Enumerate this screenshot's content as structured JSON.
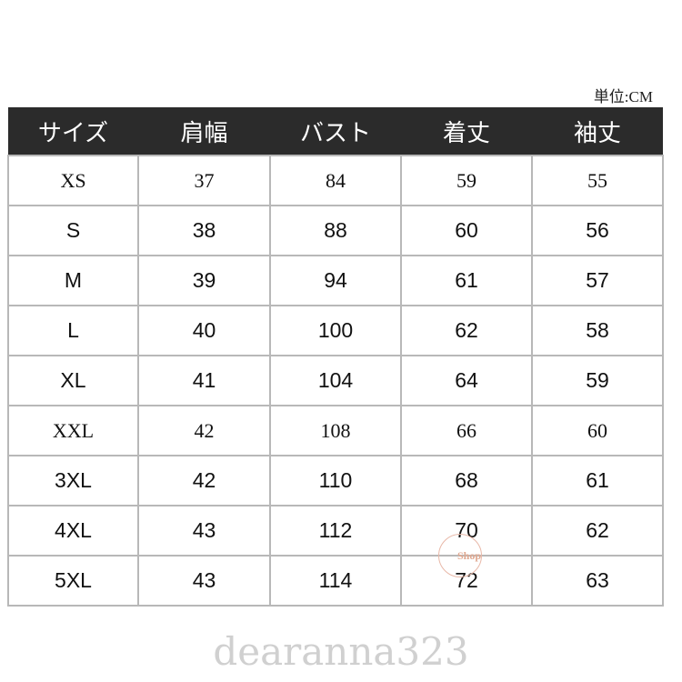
{
  "unit_label": "単位:CM",
  "headers": [
    "サイズ",
    "肩幅",
    "バスト",
    "着丈",
    "袖丈"
  ],
  "rows": [
    [
      "XS",
      "37",
      "84",
      "59",
      "55"
    ],
    [
      "S",
      "38",
      "88",
      "60",
      "56"
    ],
    [
      "M",
      "39",
      "94",
      "61",
      "57"
    ],
    [
      "L",
      "40",
      "100",
      "62",
      "58"
    ],
    [
      "XL",
      "41",
      "104",
      "64",
      "59"
    ],
    [
      "XXL",
      "42",
      "108",
      "66",
      "60"
    ],
    [
      "3XL",
      "42",
      "110",
      "68",
      "61"
    ],
    [
      "4XL",
      "43",
      "112",
      "70",
      "62"
    ],
    [
      "5XL",
      "43",
      "114",
      "72",
      "63"
    ]
  ],
  "stamp_text": "Shop",
  "watermark": "dearanna323"
}
